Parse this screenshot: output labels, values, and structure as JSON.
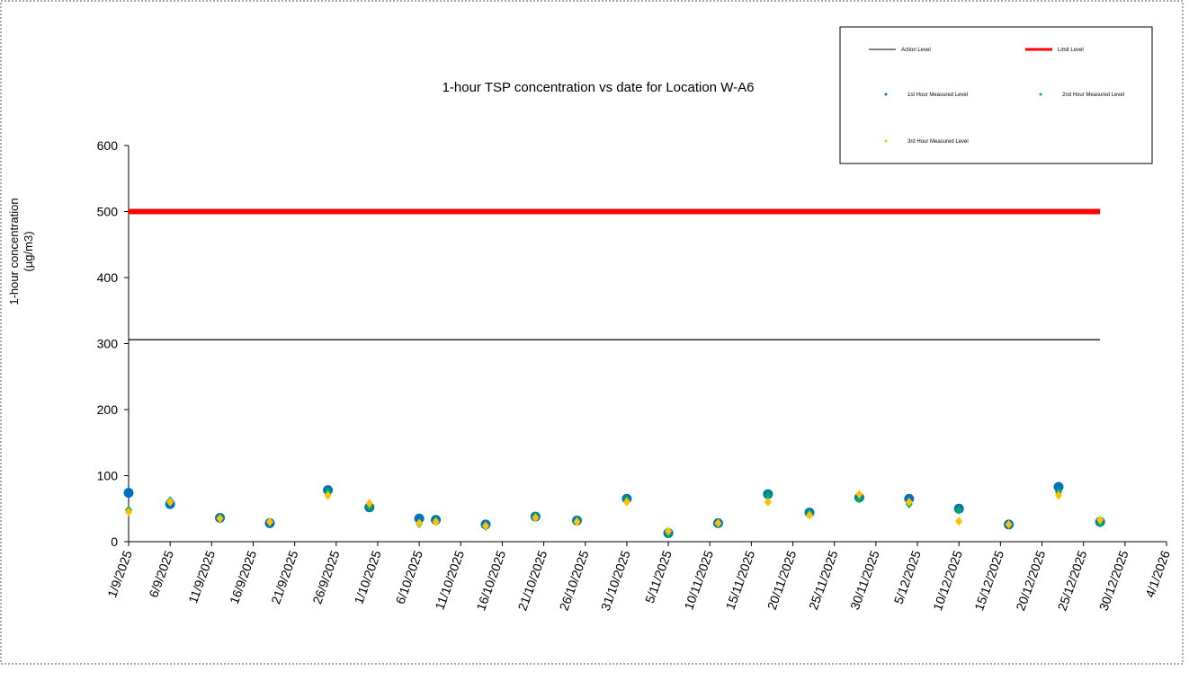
{
  "chart_data": {
    "type": "scatter",
    "title": "1-hour TSP concentration vs date for Location  W-A6",
    "y_label": [
      "1-hour concentration",
      "(µg/m3)"
    ],
    "xlim": [
      "1/9/2025",
      "4/1/2026"
    ],
    "xticks": [
      "1/9/2025",
      "6/9/2025",
      "11/9/2025",
      "16/9/2025",
      "21/9/2025",
      "26/9/2025",
      "1/10/2025",
      "6/10/2025",
      "11/10/2025",
      "16/10/2025",
      "21/10/2025",
      "26/10/2025",
      "31/10/2025",
      "5/11/2025",
      "10/11/2025",
      "15/11/2025",
      "20/11/2025",
      "25/11/2025",
      "30/11/2025",
      "5/12/2025",
      "10/12/2025",
      "15/12/2025",
      "20/12/2025",
      "25/12/2025",
      "30/12/2025",
      "4/1/2026"
    ],
    "ylim": [
      0,
      600
    ],
    "yticks": [
      0,
      100,
      200,
      300,
      400,
      500,
      600
    ],
    "series": [
      {
        "name": "Action Level",
        "color": "#000000",
        "mark": "line",
        "x": [
          "1/9/2025",
          "27/12/2025"
        ],
        "values": [
          306,
          306
        ]
      },
      {
        "name": "Limit Level",
        "color": "#ff0000",
        "mark": "thick-line",
        "x": [
          "1/9/2025",
          "27/12/2025"
        ],
        "values": [
          500,
          500
        ]
      },
      {
        "name": "1st Hour Measured Level",
        "color": "#0070c0",
        "mark": "circle",
        "x": [
          "1/9/2025",
          "6/9/2025",
          "12/9/2025",
          "18/9/2025",
          "25/9/2025",
          "30/9/2025",
          "6/10/2025",
          "8/10/2025",
          "14/10/2025",
          "20/10/2025",
          "25/10/2025",
          "31/10/2025",
          "5/11/2025",
          "11/11/2025",
          "17/11/2025",
          "22/11/2025",
          "28/11/2025",
          "4/12/2025",
          "10/12/2025",
          "16/12/2025",
          "22/12/2025",
          "27/12/2025"
        ],
        "values": [
          74,
          57,
          36,
          28,
          78,
          52,
          35,
          33,
          26,
          38,
          32,
          65,
          13,
          28,
          72,
          44,
          67,
          65,
          50,
          26,
          83,
          30
        ]
      },
      {
        "name": "2nd Hour Measured Level",
        "color": "#00b050",
        "mark": "diamond",
        "x": [
          "1/9/2025",
          "6/9/2025",
          "12/9/2025",
          "18/9/2025",
          "25/9/2025",
          "30/9/2025",
          "6/10/2025",
          "8/10/2025",
          "14/10/2025",
          "20/10/2025",
          "25/10/2025",
          "31/10/2025",
          "5/11/2025",
          "11/11/2025",
          "17/11/2025",
          "22/11/2025",
          "28/11/2025",
          "4/12/2025",
          "10/12/2025",
          "16/12/2025",
          "22/12/2025",
          "27/12/2025"
        ],
        "values": [
          48,
          62,
          36,
          30,
          75,
          52,
          27,
          32,
          23,
          39,
          32,
          64,
          12,
          27,
          70,
          43,
          65,
          57,
          48,
          26,
          75,
          28
        ]
      },
      {
        "name": "3rd Hour Measured Level",
        "color": "#ffc000",
        "mark": "diamond",
        "x": [
          "1/9/2025",
          "6/9/2025",
          "12/9/2025",
          "18/9/2025",
          "25/9/2025",
          "30/9/2025",
          "6/10/2025",
          "8/10/2025",
          "14/10/2025",
          "20/10/2025",
          "25/10/2025",
          "31/10/2025",
          "5/11/2025",
          "11/11/2025",
          "17/11/2025",
          "22/11/2025",
          "28/11/2025",
          "4/12/2025",
          "10/12/2025",
          "16/12/2025",
          "22/12/2025",
          "27/12/2025"
        ],
        "values": [
          45,
          60,
          35,
          30,
          70,
          58,
          28,
          30,
          24,
          36,
          30,
          60,
          16,
          28,
          60,
          40,
          72,
          60,
          31,
          26,
          70,
          33
        ]
      }
    ]
  }
}
